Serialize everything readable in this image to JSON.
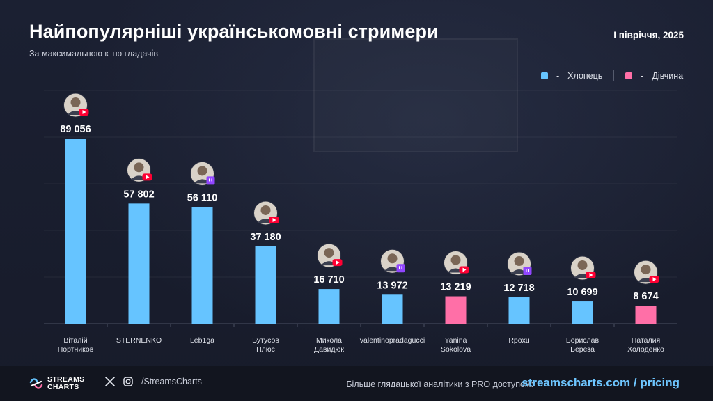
{
  "header": {
    "title": "Найпопулярніші українськомовні стримери",
    "subtitle": "За максимальною к-тю гладачів",
    "period": "І півріччя, 2025"
  },
  "legend": {
    "items": [
      {
        "label": "Хлопець",
        "color": "#66c4ff"
      },
      {
        "label": "Дівчина",
        "color": "#ff6fa7"
      }
    ]
  },
  "chart_data": {
    "type": "bar",
    "categories": [
      "Віталій Портников",
      "STERNENKO",
      "Leb1ga",
      "Бутусов Плюс",
      "Микола Давидюк",
      "valentinopradagucci",
      "Yanina Sokolova",
      "Rpoxu",
      "Борислав Береза",
      "Наталия Холоденко"
    ],
    "values": [
      89056,
      57802,
      56110,
      37180,
      16710,
      13972,
      13219,
      12718,
      10699,
      8674
    ],
    "value_labels": [
      "89 056",
      "57 802",
      "56 110",
      "37 180",
      "16 710",
      "13 972",
      "13 219",
      "12 718",
      "10 699",
      "8 674"
    ],
    "gender": [
      "Хлопець",
      "Хлопець",
      "Хлопець",
      "Хлопець",
      "Хлопець",
      "Хлопець",
      "Дівчина",
      "Хлопець",
      "Хлопець",
      "Дівчина"
    ],
    "platform": [
      "youtube",
      "youtube",
      "twitch",
      "youtube",
      "youtube",
      "twitch",
      "youtube",
      "twitch",
      "youtube",
      "youtube"
    ],
    "ylim": [
      0,
      100000
    ],
    "grid": true,
    "legend_position": "top-right",
    "colors": {
      "male": "#66c4ff",
      "female": "#ff6fa7",
      "youtube": "#ff0033",
      "twitch": "#9146ff"
    }
  },
  "footer": {
    "brand_line1": "STREAMS",
    "brand_line2": "CHARTS",
    "handle": "/StreamsCharts",
    "promo": "Більше глядацької аналітики з PRO доступом:",
    "link": "streamscharts.com / pricing",
    "icons": [
      "x-icon",
      "instagram-icon"
    ]
  }
}
